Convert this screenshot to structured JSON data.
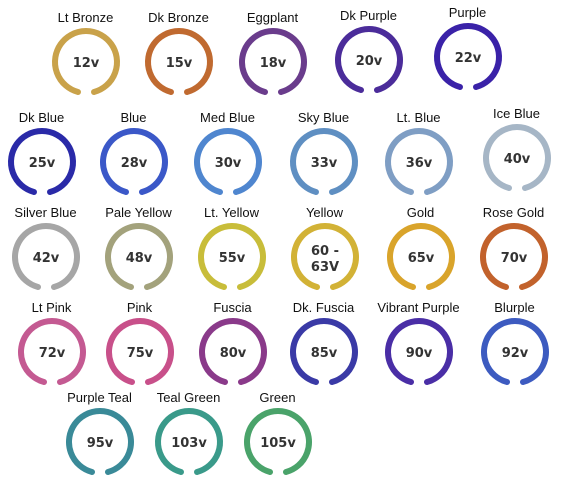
{
  "swatches": [
    {
      "name": "Lt Bronze",
      "voltage": "12v",
      "color": "#c9a24a"
    },
    {
      "name": "Dk Bronze",
      "voltage": "15v",
      "color": "#c06a30"
    },
    {
      "name": "Eggplant",
      "voltage": "18v",
      "color": "#6a3c8c"
    },
    {
      "name": "Dk Purple",
      "voltage": "20v",
      "color": "#4b2c9a"
    },
    {
      "name": "Purple",
      "voltage": "22v",
      "color": "#3a22a8"
    },
    {
      "name": "Dk Blue",
      "voltage": "25v",
      "color": "#2a2aa8"
    },
    {
      "name": "Blue",
      "voltage": "28v",
      "color": "#3b58c8"
    },
    {
      "name": "Med Blue",
      "voltage": "30v",
      "color": "#4f86cf"
    },
    {
      "name": "Sky Blue",
      "voltage": "33v",
      "color": "#5f8fc2"
    },
    {
      "name": "Lt. Blue",
      "voltage": "36v",
      "color": "#7f9ec4"
    },
    {
      "name": "Ice Blue",
      "voltage": "40v",
      "color": "#a6b6c6"
    },
    {
      "name": "Silver Blue",
      "voltage": "42v",
      "color": "#a6a6a6"
    },
    {
      "name": "Pale Yellow",
      "voltage": "48v",
      "color": "#a3a27c"
    },
    {
      "name": "Lt. Yellow",
      "voltage": "55v",
      "color": "#c8bd3a"
    },
    {
      "name": "Yellow",
      "voltage": "60 - 63V",
      "color": "#d2b236"
    },
    {
      "name": "Gold",
      "voltage": "65v",
      "color": "#d9a42b"
    },
    {
      "name": "Rose Gold",
      "voltage": "70v",
      "color": "#c2622c"
    },
    {
      "name": "Lt Pink",
      "voltage": "72v",
      "color": "#c45a92"
    },
    {
      "name": "Pink",
      "voltage": "75v",
      "color": "#c8508a"
    },
    {
      "name": "Fuscia",
      "voltage": "80v",
      "color": "#8a3a8a"
    },
    {
      "name": "Dk. Fuscia",
      "voltage": "85v",
      "color": "#3a3aa6"
    },
    {
      "name": "Vibrant Purple",
      "voltage": "90v",
      "color": "#4a2ea6"
    },
    {
      "name": "Blurple",
      "voltage": "92v",
      "color": "#3d5bc0"
    },
    {
      "name": "Purple Teal",
      "voltage": "95v",
      "color": "#3a8a98"
    },
    {
      "name": "Teal Green",
      "voltage": "103v",
      "color": "#3a9a8a"
    },
    {
      "name": "Green",
      "voltage": "105v",
      "color": "#4aa36a"
    }
  ]
}
